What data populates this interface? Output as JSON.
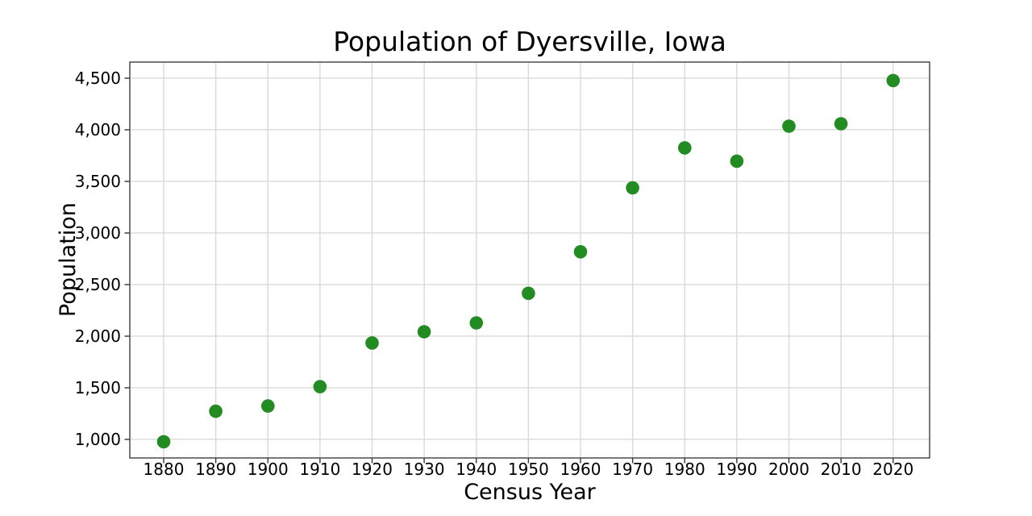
{
  "chart_data": {
    "type": "scatter",
    "title": "Population of Dyersville, Iowa",
    "xlabel": "Census Year",
    "ylabel": "Population",
    "x": [
      1880,
      1890,
      1900,
      1910,
      1920,
      1930,
      1940,
      1950,
      1960,
      1970,
      1980,
      1990,
      2000,
      2010,
      2020
    ],
    "y": [
      977,
      1272,
      1323,
      1511,
      1934,
      2043,
      2129,
      2415,
      2818,
      3437,
      3825,
      3696,
      4035,
      4058,
      4477
    ],
    "xticks": [
      1880,
      1890,
      1900,
      1910,
      1920,
      1930,
      1940,
      1950,
      1960,
      1970,
      1980,
      1990,
      2000,
      2010,
      2020
    ],
    "xtick_labels": [
      "1880",
      "1890",
      "1900",
      "1910",
      "1920",
      "1930",
      "1940",
      "1950",
      "1960",
      "1970",
      "1980",
      "1990",
      "2000",
      "2010",
      "2020"
    ],
    "yticks": [
      1000,
      1500,
      2000,
      2500,
      3000,
      3500,
      4000,
      4500
    ],
    "ytick_labels": [
      "1,000",
      "1,500",
      "2,000",
      "2,500",
      "3,000",
      "3,500",
      "4,000",
      "4,500"
    ],
    "xlim": [
      1873.5,
      2027
    ],
    "ylim": [
      820,
      4656
    ],
    "grid": true,
    "legend": null,
    "marker": {
      "shape": "circle",
      "color": "#228B22",
      "radius_px": 8.3
    },
    "colors": {
      "grid": "#d9d9d9",
      "frame": "#4a4a4a",
      "tick": "#333333",
      "text": "#000000",
      "background": "#ffffff"
    }
  }
}
